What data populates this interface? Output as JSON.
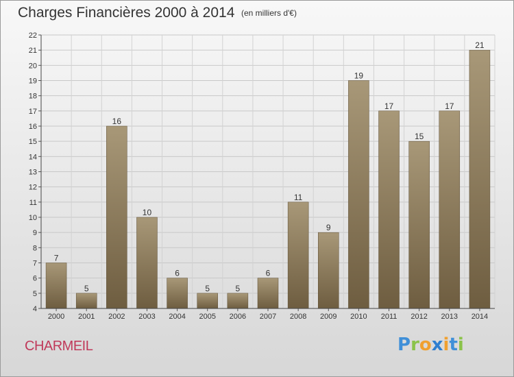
{
  "header": {
    "title": "Charges Financières 2000 à 2014",
    "unit_note": "(en milliers d'€)"
  },
  "footer": {
    "commune": "CHARMEIL",
    "logo_text": "Proxiti"
  },
  "colors": {
    "bar_top": "#a89878",
    "bar_bottom": "#6e5d40",
    "commune": "#c0395a"
  },
  "chart_data": {
    "type": "bar",
    "title": "Charges Financières 2000 à 2014",
    "subtitle": "(en milliers d'€)",
    "xlabel": "",
    "ylabel": "",
    "categories": [
      "2000",
      "2001",
      "2002",
      "2003",
      "2004",
      "2005",
      "2006",
      "2007",
      "2008",
      "2009",
      "2010",
      "2011",
      "2012",
      "2013",
      "2014"
    ],
    "values": [
      7,
      5,
      16,
      10,
      6,
      5,
      5,
      6,
      11,
      9,
      19,
      17,
      15,
      17,
      21
    ],
    "ylim": [
      4,
      22
    ],
    "yticks": [
      4,
      5,
      6,
      7,
      8,
      9,
      10,
      11,
      12,
      13,
      14,
      15,
      16,
      17,
      18,
      19,
      20,
      21,
      22
    ],
    "grid": true,
    "legend": "none"
  }
}
